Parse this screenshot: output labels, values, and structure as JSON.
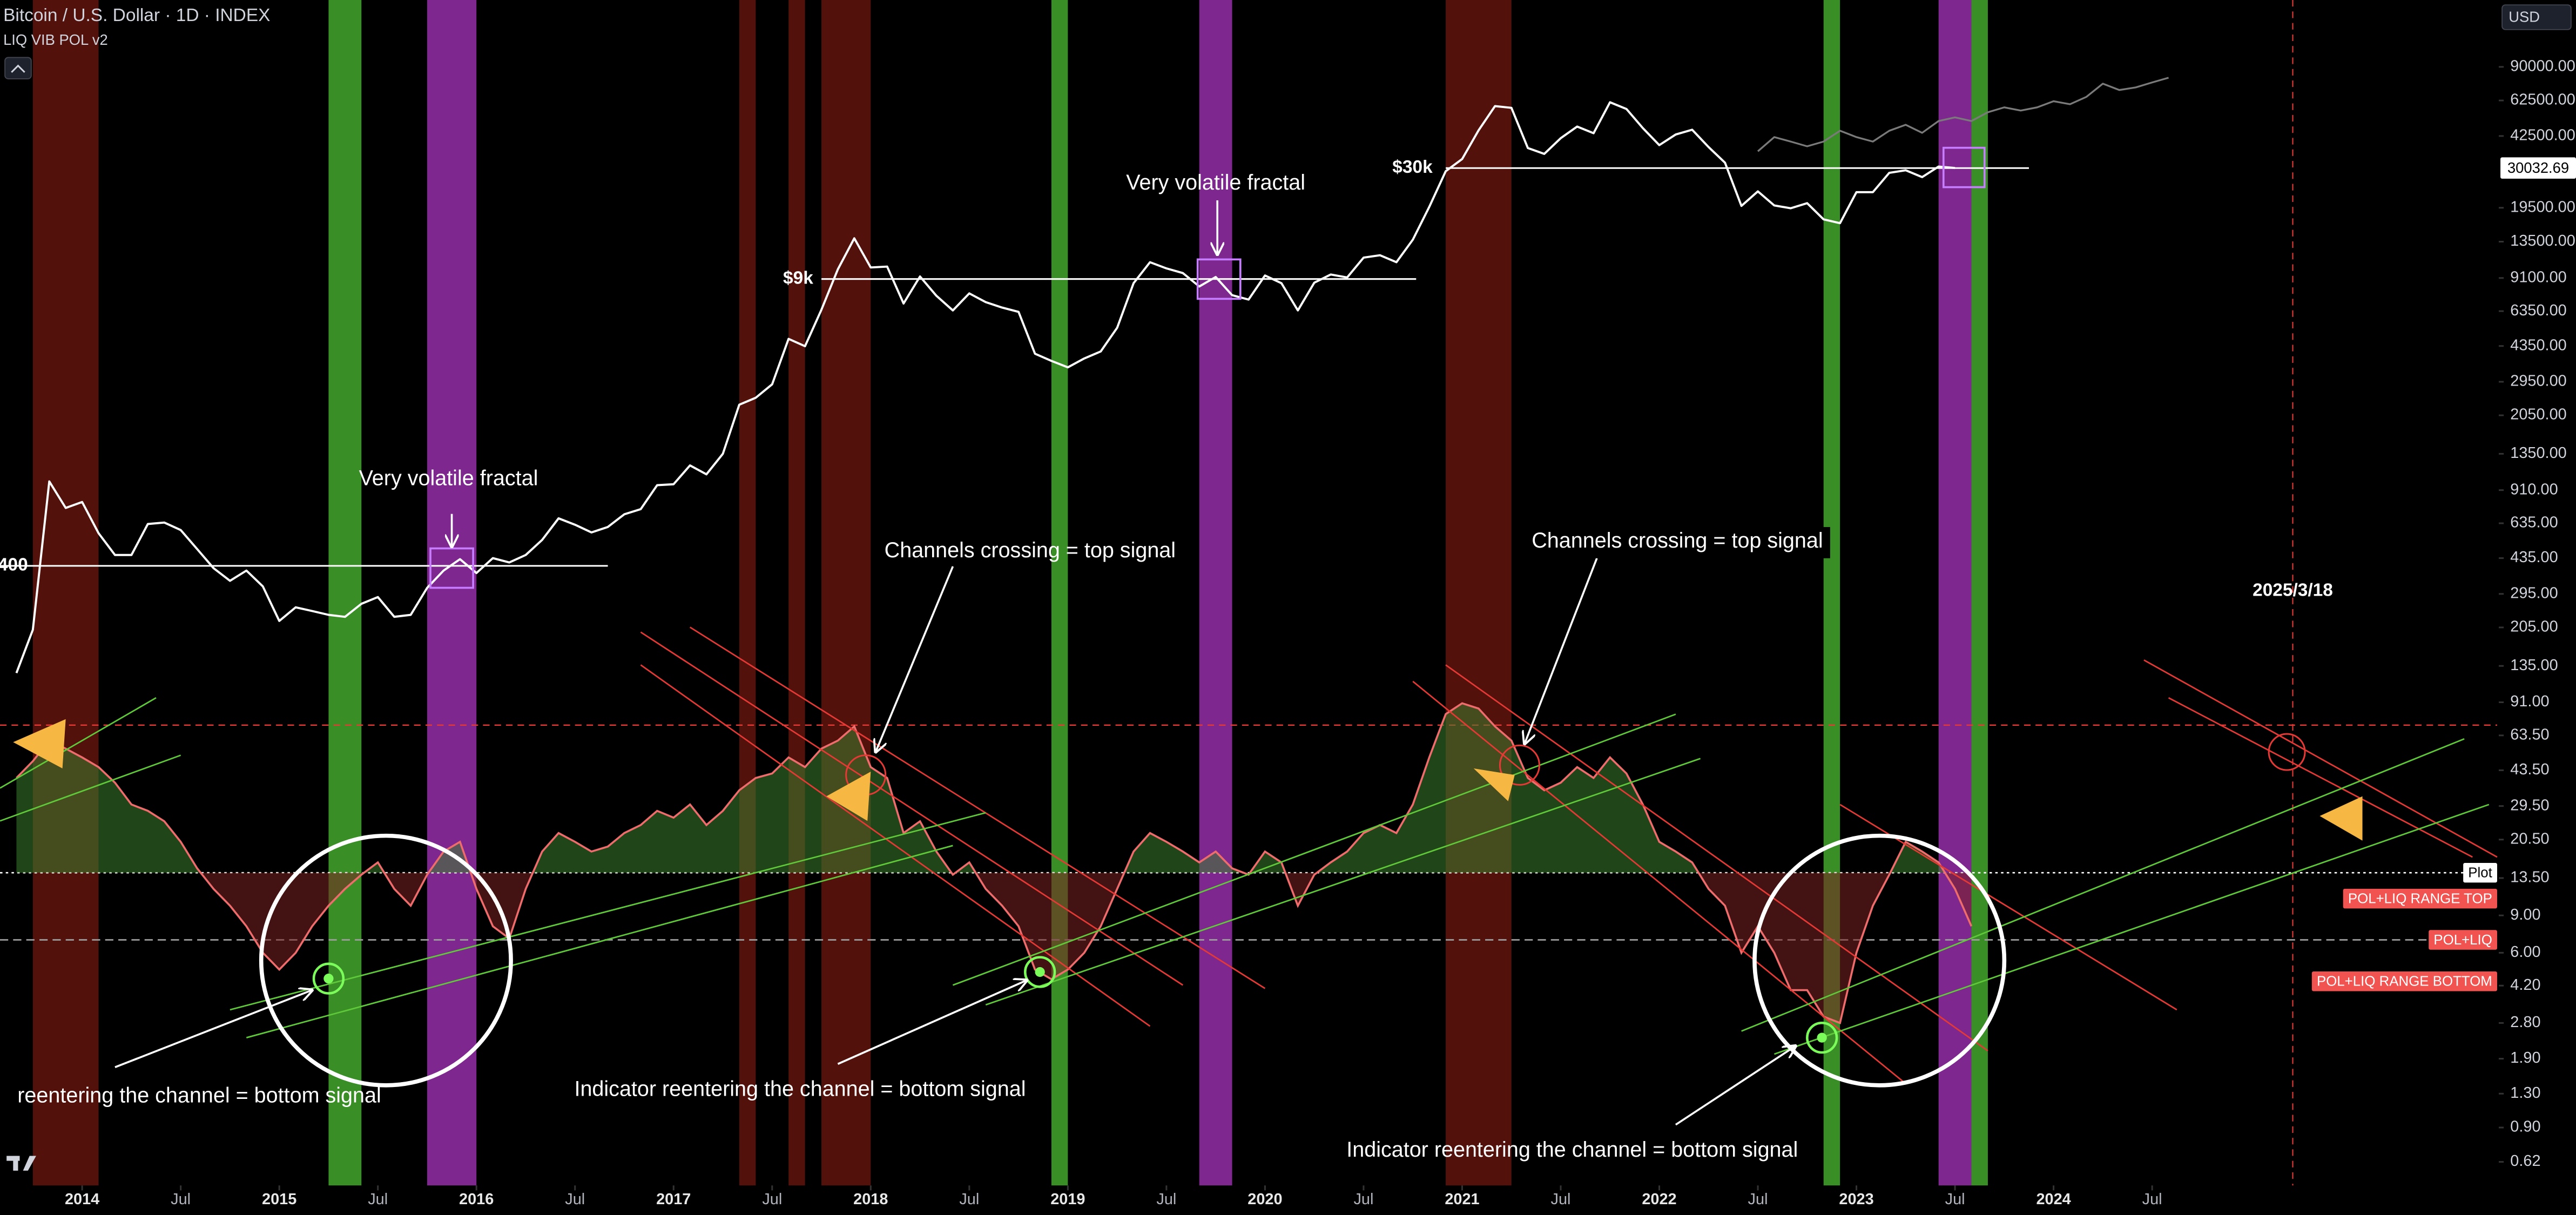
{
  "chart_data": {
    "type": "line",
    "title": "Bitcoin / U.S. Dollar · 1D · INDEX",
    "currency": "USD",
    "log_scale": true,
    "grid": false,
    "xlim": [
      "2013-08",
      "2026-04"
    ],
    "ylim": [
      0.48,
      186000
    ],
    "x": [
      "2013-09",
      "2013-10",
      "2013-11",
      "2013-12",
      "2014-01",
      "2014-02",
      "2014-03",
      "2014-04",
      "2014-05",
      "2014-06",
      "2014-07",
      "2014-08",
      "2014-09",
      "2014-10",
      "2014-11",
      "2014-12",
      "2015-01",
      "2015-02",
      "2015-03",
      "2015-04",
      "2015-05",
      "2015-06",
      "2015-07",
      "2015-08",
      "2015-09",
      "2015-10",
      "2015-11",
      "2015-12",
      "2016-01",
      "2016-02",
      "2016-03",
      "2016-04",
      "2016-05",
      "2016-06",
      "2016-07",
      "2016-08",
      "2016-09",
      "2016-10",
      "2016-11",
      "2016-12",
      "2017-01",
      "2017-02",
      "2017-03",
      "2017-04",
      "2017-05",
      "2017-06",
      "2017-07",
      "2017-08",
      "2017-09",
      "2017-10",
      "2017-11",
      "2017-12",
      "2018-01",
      "2018-02",
      "2018-03",
      "2018-04",
      "2018-05",
      "2018-06",
      "2018-07",
      "2018-08",
      "2018-09",
      "2018-10",
      "2018-11",
      "2018-12",
      "2019-01",
      "2019-02",
      "2019-03",
      "2019-04",
      "2019-05",
      "2019-06",
      "2019-07",
      "2019-08",
      "2019-09",
      "2019-10",
      "2019-11",
      "2019-12",
      "2020-01",
      "2020-02",
      "2020-03",
      "2020-04",
      "2020-05",
      "2020-06",
      "2020-07",
      "2020-08",
      "2020-09",
      "2020-10",
      "2020-11",
      "2020-12",
      "2021-01",
      "2021-02",
      "2021-03",
      "2021-04",
      "2021-05",
      "2021-06",
      "2021-07",
      "2021-08",
      "2021-09",
      "2021-10",
      "2021-11",
      "2021-12",
      "2022-01",
      "2022-02",
      "2022-03",
      "2022-04",
      "2022-05",
      "2022-06",
      "2022-07",
      "2022-08",
      "2022-09",
      "2022-10",
      "2022-11",
      "2022-12",
      "2023-01",
      "2023-02",
      "2023-03",
      "2023-04",
      "2023-05",
      "2023-06",
      "2023-07",
      "2023-08",
      "2023-09",
      "2023-10",
      "2023-11",
      "2023-12",
      "2024-01",
      "2024-02",
      "2024-03",
      "2024-04",
      "2024-05",
      "2024-06",
      "2024-07",
      "2024-08"
    ],
    "series": [
      {
        "color": "#ffffff",
        "values": [
          125,
          200,
          1000,
          750,
          800,
          570,
          450,
          450,
          630,
          640,
          590,
          480,
          390,
          340,
          380,
          320,
          220,
          255,
          245,
          235,
          230,
          265,
          285,
          230,
          235,
          315,
          380,
          430,
          370,
          435,
          415,
          450,
          530,
          670,
          625,
          575,
          610,
          700,
          740,
          960,
          970,
          1190,
          1080,
          1350,
          2300,
          2480,
          2870,
          4700,
          4340,
          6450,
          10000,
          14000,
          10200,
          10300,
          6900,
          9250,
          7500,
          6400,
          7700,
          7000,
          6600,
          6300,
          4000,
          3700,
          3450,
          3800,
          4100,
          5300,
          8600,
          10800,
          10100,
          9600,
          8300,
          9200,
          7550,
          7200,
          9350,
          8600,
          6400,
          8650,
          9450,
          9150,
          11350,
          11650,
          10800,
          13800,
          19700,
          29000,
          33100,
          45200,
          58800,
          57700,
          37300,
          35000,
          41500,
          47100,
          43800,
          61300,
          57000,
          46300,
          38500,
          43200,
          45500,
          37700,
          31800,
          19900,
          23300,
          20000,
          19400,
          20500,
          17200,
          16500,
          23100,
          23100,
          28500,
          29300,
          27200,
          30500,
          30032.69,
          null,
          null,
          null,
          null,
          null,
          null,
          null,
          null,
          null,
          null,
          null,
          null,
          null
        ]
      },
      {
        "color": "#7a7a7a",
        "values": [
          null,
          null,
          null,
          null,
          null,
          null,
          null,
          null,
          null,
          null,
          null,
          null,
          null,
          null,
          null,
          null,
          null,
          null,
          null,
          null,
          null,
          null,
          null,
          null,
          null,
          null,
          null,
          null,
          null,
          null,
          null,
          null,
          null,
          null,
          null,
          null,
          null,
          null,
          null,
          null,
          null,
          null,
          null,
          null,
          null,
          null,
          null,
          null,
          null,
          null,
          null,
          null,
          null,
          null,
          null,
          null,
          null,
          null,
          null,
          null,
          null,
          null,
          null,
          null,
          null,
          null,
          null,
          null,
          null,
          null,
          null,
          null,
          null,
          null,
          null,
          null,
          null,
          null,
          null,
          null,
          null,
          null,
          null,
          null,
          null,
          null,
          null,
          null,
          null,
          null,
          null,
          null,
          null,
          null,
          null,
          null,
          null,
          null,
          null,
          null,
          null,
          null,
          null,
          null,
          null,
          null,
          36000,
          42000,
          40000,
          38000,
          40000,
          45000,
          42000,
          40000,
          45000,
          48000,
          44000,
          50000,
          52000,
          50000,
          55000,
          58000,
          56000,
          58000,
          62000,
          60000,
          65000,
          75000,
          70000,
          72000,
          76000,
          80000
        ]
      },
      {
        "name": "LIQ VIB POL v2",
        "color": "#ef6c6c",
        "values": [
          40,
          48,
          60,
          55,
          50,
          45,
          38,
          30,
          28,
          25,
          20,
          15,
          12,
          10,
          8,
          6,
          5,
          6,
          8,
          10,
          12,
          14,
          16,
          12,
          10,
          14,
          18,
          20,
          12,
          8,
          7,
          12,
          18,
          22,
          20,
          18,
          19,
          22,
          24,
          28,
          26,
          30,
          24,
          28,
          35,
          40,
          42,
          50,
          45,
          55,
          60,
          70,
          45,
          40,
          22,
          25,
          18,
          14,
          16,
          12,
          10,
          8,
          5,
          4.5,
          5,
          6,
          8,
          12,
          18,
          22,
          20,
          18,
          16,
          18,
          15,
          14,
          18,
          16,
          10,
          14,
          16,
          18,
          22,
          24,
          22,
          30,
          50,
          80,
          90,
          85,
          70,
          60,
          40,
          35,
          38,
          45,
          40,
          50,
          42,
          30,
          20,
          18,
          16,
          12,
          10,
          6,
          8,
          6,
          4,
          4,
          3,
          2.8,
          6,
          10,
          14,
          20,
          18,
          16,
          12,
          8,
          null,
          null,
          null,
          null,
          null,
          null,
          null,
          null,
          null,
          null,
          null,
          null
        ]
      }
    ],
    "last_price": 30032.69,
    "yticks": [
      {
        "value": 90000,
        "label": "90000.00"
      },
      {
        "value": 62500,
        "label": "62500.00"
      },
      {
        "value": 42500,
        "label": "42500.00"
      },
      {
        "value": 19500,
        "label": "19500.00"
      },
      {
        "value": 13500,
        "label": "13500.00"
      },
      {
        "value": 9100,
        "label": "9100.00"
      },
      {
        "value": 6350,
        "label": "6350.00"
      },
      {
        "value": 4350,
        "label": "4350.00"
      },
      {
        "value": 2950,
        "label": "2950.00"
      },
      {
        "value": 2050,
        "label": "2050.00"
      },
      {
        "value": 1350,
        "label": "1350.00"
      },
      {
        "value": 910,
        "label": "910.00"
      },
      {
        "value": 635,
        "label": "635.00"
      },
      {
        "value": 435,
        "label": "435.00"
      },
      {
        "value": 295,
        "label": "295.00"
      },
      {
        "value": 205,
        "label": "205.00"
      },
      {
        "value": 135,
        "label": "135.00"
      },
      {
        "value": 91,
        "label": "91.00"
      },
      {
        "value": 63.5,
        "label": "63.50"
      },
      {
        "value": 43.5,
        "label": "43.50"
      },
      {
        "value": 29.5,
        "label": "29.50"
      },
      {
        "value": 20.5,
        "label": "20.50"
      },
      {
        "value": 13.5,
        "label": "13.50"
      },
      {
        "value": 9,
        "label": "9.00"
      },
      {
        "value": 6,
        "label": "6.00"
      },
      {
        "value": 4.2,
        "label": "4.20"
      },
      {
        "value": 2.8,
        "label": "2.80"
      },
      {
        "value": 1.9,
        "label": "1.90"
      },
      {
        "value": 1.3,
        "label": "1.30"
      },
      {
        "value": 0.9,
        "label": "0.90"
      },
      {
        "value": 0.62,
        "label": "0.62"
      }
    ],
    "xticks": [
      {
        "value": "2014-01",
        "label": "2014"
      },
      {
        "value": "2014-07",
        "label": "Jul"
      },
      {
        "value": "2015-01",
        "label": "2015"
      },
      {
        "value": "2015-07",
        "label": "Jul"
      },
      {
        "value": "2016-01",
        "label": "2016"
      },
      {
        "value": "2016-07",
        "label": "Jul"
      },
      {
        "value": "2017-01",
        "label": "2017"
      },
      {
        "value": "2017-07",
        "label": "Jul"
      },
      {
        "value": "2018-01",
        "label": "2018"
      },
      {
        "value": "2018-07",
        "label": "Jul"
      },
      {
        "value": "2019-01",
        "label": "2019"
      },
      {
        "value": "2019-07",
        "label": "Jul"
      },
      {
        "value": "2020-01",
        "label": "2020"
      },
      {
        "value": "2020-07",
        "label": "Jul"
      },
      {
        "value": "2021-01",
        "label": "2021"
      },
      {
        "value": "2021-07",
        "label": "Jul"
      },
      {
        "value": "2022-01",
        "label": "2022"
      },
      {
        "value": "2022-07",
        "label": "Jul"
      },
      {
        "value": "2023-01",
        "label": "2023"
      },
      {
        "value": "2023-07",
        "label": "Jul"
      },
      {
        "value": "2024-01",
        "label": "2024"
      },
      {
        "value": "2024-07",
        "label": "Jul"
      }
    ],
    "bands": [
      {
        "start": "2013-10",
        "end": "2014-02",
        "color": "#8a1c14"
      },
      {
        "start": "2017-05",
        "end": "2017-06",
        "color": "#8a1c14"
      },
      {
        "start": "2017-08",
        "end": "2017-09",
        "color": "#8a1c14"
      },
      {
        "start": "2017-10",
        "end": "2018-01",
        "color": "#8a1c14"
      },
      {
        "start": "2020-12",
        "end": "2021-04",
        "color": "#8a1c14"
      },
      {
        "start": "2015-04",
        "end": "2015-06",
        "color": "#3f9d2a"
      },
      {
        "start": "2018-12",
        "end": "2019-01",
        "color": "#3f9d2a"
      },
      {
        "start": "2022-11",
        "end": "2022-12",
        "color": "#3f9d2a"
      },
      {
        "start": "2023-08",
        "end": "2023-09",
        "color": "#3f9d2a"
      },
      {
        "start": "2015-10",
        "end": "2016-01",
        "color": "#8b2b9e"
      },
      {
        "start": "2019-09",
        "end": "2019-11",
        "color": "#8b2b9e"
      },
      {
        "start": "2023-06",
        "end": "2023-08",
        "color": "#8b2b9e"
      }
    ],
    "price_levels": [
      {
        "label": "400",
        "value": 400
      },
      {
        "label": "$9k",
        "value": 9000
      },
      {
        "label": "$30k",
        "value": 30000
      }
    ],
    "indicator_levels": [
      {
        "label": "Plot",
        "value": 14.3,
        "color": "#ffffff",
        "line": "dotted"
      },
      {
        "label": "POL+LIQ RANGE TOP",
        "value": 10.8,
        "color": "#f05350"
      },
      {
        "label": "POL+LIQ",
        "value": 6.9,
        "color": "#f05350",
        "line": "dashed"
      },
      {
        "label": "POL+LIQ RANGE BOTTOM",
        "value": 4.4,
        "color": "#f05350"
      }
    ],
    "reference_line": {
      "value": 71,
      "color": "#e53935",
      "line": "dashed"
    },
    "date_marker": {
      "value": "2025-03-18",
      "label": "2025/3/18"
    },
    "annotations": [
      "Very volatile fractal",
      "Very volatile fractal",
      "Channels crossing = top signal",
      "Channels crossing = top signal",
      "reentering the channel = bottom signal",
      "Indicator reentering the channel = bottom signal",
      "Indicator reentering the channel = bottom signal"
    ]
  }
}
